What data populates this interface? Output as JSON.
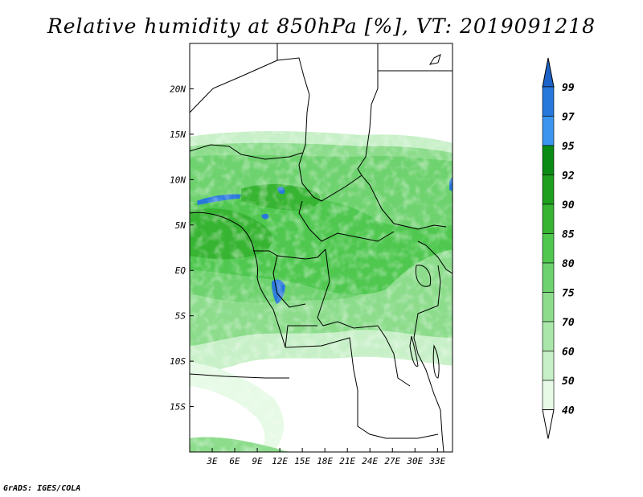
{
  "title": "Relative humidity at 850hPa [%], VT: 2019091218",
  "footer": "GrADS: IGES/COLA",
  "map": {
    "lon_range": [
      0,
      35
    ],
    "lat_range": [
      -20,
      25
    ],
    "lon_ticks": [
      3,
      6,
      9,
      12,
      15,
      18,
      21,
      24,
      27,
      30,
      33
    ],
    "lon_labels": [
      "3E",
      "6E",
      "9E",
      "12E",
      "15E",
      "18E",
      "21E",
      "24E",
      "27E",
      "30E",
      "33E"
    ],
    "lat_ticks": [
      20,
      15,
      10,
      5,
      0,
      -5,
      -10,
      -15
    ],
    "lat_labels": [
      "20N",
      "15N",
      "10N",
      "5N",
      "EQ",
      "5S",
      "10S",
      "15S"
    ]
  },
  "colorbar": {
    "labels": [
      "99",
      "97",
      "95",
      "92",
      "90",
      "85",
      "80",
      "75",
      "70",
      "60",
      "50",
      "40"
    ],
    "colors": [
      "#1e64c8",
      "#2878dc",
      "#3c96f0",
      "#0a8c14",
      "#1ea01e",
      "#37b432",
      "#50c850",
      "#6ed26e",
      "#8cdc8c",
      "#aae6aa",
      "#c8f0c8",
      "#e6fae6",
      "#ffffff"
    ]
  }
}
